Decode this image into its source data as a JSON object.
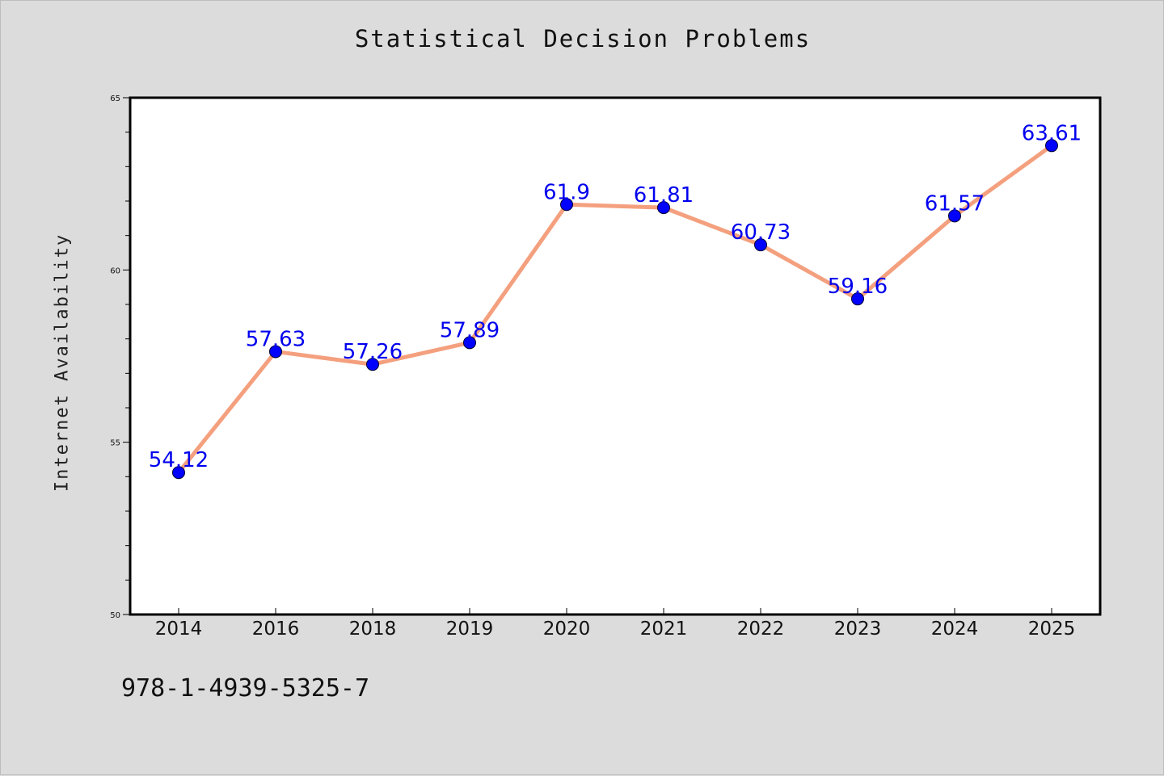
{
  "chart_data": {
    "type": "line",
    "title": "Statistical Decision Problems",
    "xlabel": "",
    "ylabel": "Internet Availability",
    "categories": [
      "2014",
      "2016",
      "2018",
      "2019",
      "2020",
      "2021",
      "2022",
      "2023",
      "2024",
      "2025"
    ],
    "series": [
      {
        "values": [
          54.12,
          57.63,
          57.26,
          57.89,
          61.9,
          61.81,
          60.73,
          59.16,
          61.57,
          63.61
        ],
        "value_labels": [
          "54.12",
          "57.63",
          "57.26",
          "57.89",
          "61.9",
          "61.81",
          "60.73",
          "59.16",
          "61.57",
          "63.61"
        ],
        "line_color": "#f4a07e",
        "marker_color": "#0000ff"
      }
    ],
    "ylim": [
      50,
      65
    ],
    "yticks": [
      50,
      55,
      60,
      65
    ],
    "ytick_labels": [
      "50",
      "55",
      "60",
      "65"
    ],
    "grid": false,
    "legend": "none"
  },
  "footer": {
    "isbn": "978-1-4939-5325-7"
  },
  "colors": {
    "background": "#dcdcdc",
    "plot_background": "#ffffff"
  }
}
